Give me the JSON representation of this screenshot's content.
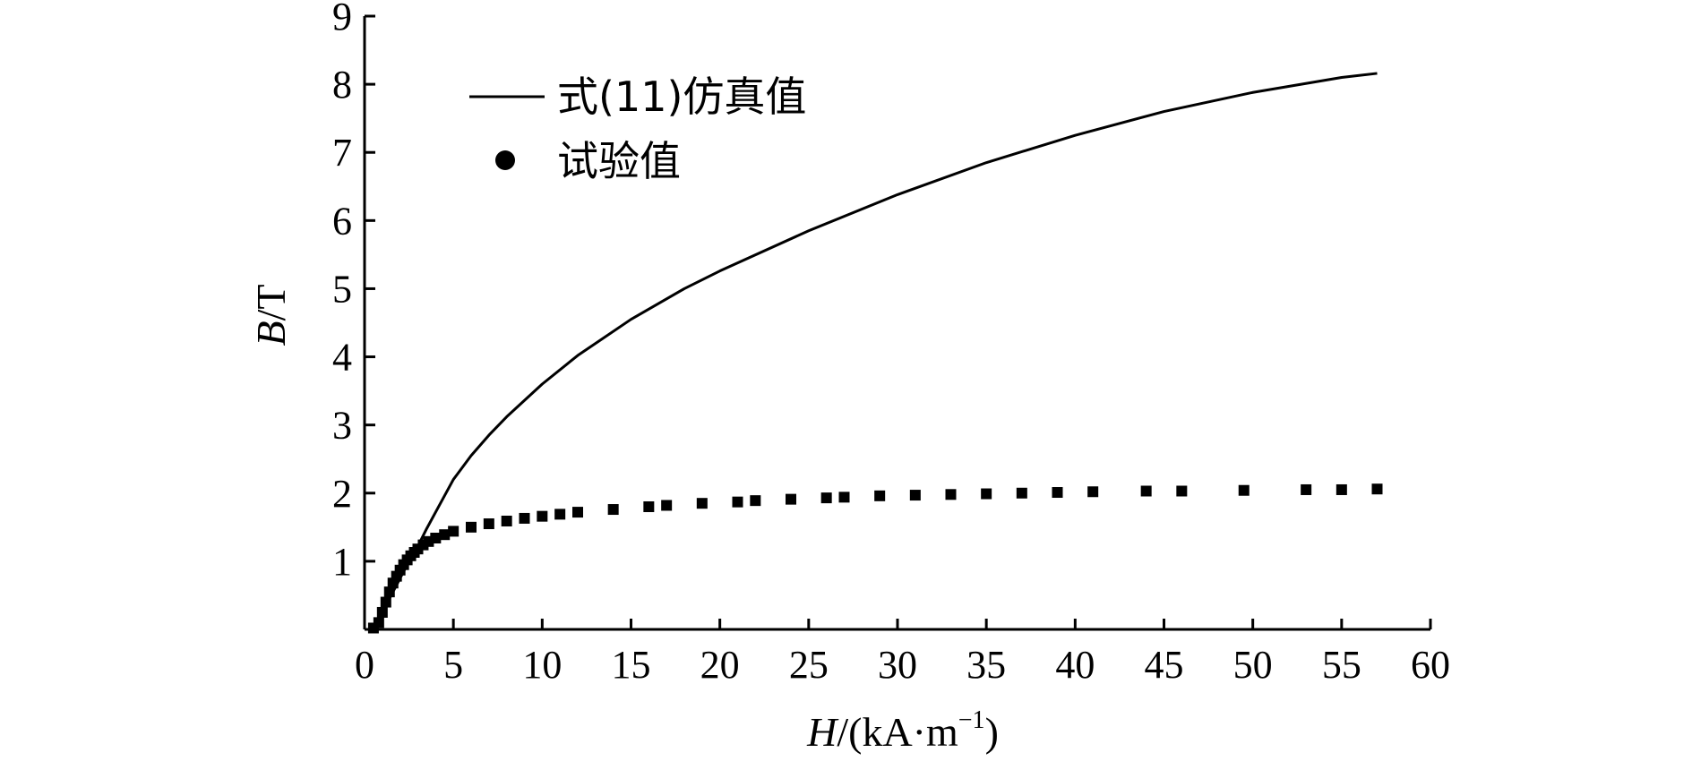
{
  "chart_data": {
    "type": "scatter",
    "title": "",
    "xlabel": "H/(kA·m⁻¹)",
    "xlabel_parts": {
      "var": "H",
      "unit_open": "/(kA·m",
      "sup": "−1",
      "unit_close": ")"
    },
    "ylabel": "B/T",
    "ylabel_parts": {
      "var": "B",
      "unit": "/T"
    },
    "xlim": [
      0,
      60
    ],
    "ylim": [
      0,
      9
    ],
    "xticks": [
      0,
      5,
      10,
      15,
      20,
      25,
      30,
      35,
      40,
      45,
      50,
      55,
      60
    ],
    "yticks": [
      1,
      2,
      3,
      4,
      5,
      6,
      7,
      8,
      9
    ],
    "grid": false,
    "legend_position": "top-left",
    "series": [
      {
        "name": "式(11)仿真值",
        "style": "line",
        "color": "#000000",
        "x": [
          0.5,
          1,
          1.5,
          2,
          2.5,
          3,
          3.5,
          4,
          5,
          6,
          7,
          8,
          10,
          12,
          15,
          18,
          20,
          25,
          30,
          35,
          40,
          45,
          50,
          55,
          57
        ],
        "y": [
          0.02,
          0.25,
          0.5,
          0.75,
          1.0,
          1.22,
          1.48,
          1.72,
          2.2,
          2.55,
          2.85,
          3.12,
          3.6,
          4.02,
          4.55,
          5.0,
          5.26,
          5.85,
          6.38,
          6.85,
          7.25,
          7.6,
          7.88,
          8.1,
          8.16
        ]
      },
      {
        "name": "试验值",
        "style": "marker",
        "color": "#000000",
        "x": [
          0.5,
          0.8,
          1.0,
          1.2,
          1.4,
          1.6,
          1.8,
          2.0,
          2.2,
          2.4,
          2.6,
          2.8,
          3.0,
          3.3,
          3.6,
          4.0,
          4.5,
          5.0,
          6.0,
          7.0,
          8.0,
          9.0,
          10.0,
          11.0,
          12.0,
          14.0,
          16.0,
          17.0,
          19.0,
          21.0,
          22.0,
          24.0,
          26.0,
          27.0,
          29.0,
          31.0,
          33.0,
          35.0,
          37.0,
          39.0,
          41.0,
          44.0,
          46.0,
          49.5,
          53.0,
          55.0,
          57.0
        ],
        "y": [
          0.02,
          0.1,
          0.25,
          0.4,
          0.55,
          0.68,
          0.78,
          0.87,
          0.95,
          1.02,
          1.08,
          1.13,
          1.18,
          1.24,
          1.29,
          1.34,
          1.39,
          1.44,
          1.5,
          1.55,
          1.59,
          1.63,
          1.66,
          1.69,
          1.72,
          1.76,
          1.8,
          1.82,
          1.85,
          1.87,
          1.89,
          1.91,
          1.93,
          1.94,
          1.96,
          1.97,
          1.98,
          1.99,
          2.0,
          2.01,
          2.02,
          2.03,
          2.03,
          2.04,
          2.05,
          2.05,
          2.06
        ]
      }
    ]
  }
}
